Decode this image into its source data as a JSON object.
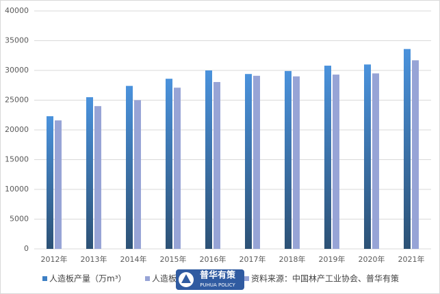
{
  "chart_data": {
    "type": "bar",
    "categories": [
      "2012年",
      "2013年",
      "2014年",
      "2015年",
      "2016年",
      "2017年",
      "2018年",
      "2019年",
      "2020年",
      "2021年"
    ],
    "series": [
      {
        "name": "人造板产量（万m³）",
        "color": "#3d7fc4",
        "values": [
          22300,
          25500,
          27400,
          28600,
          30000,
          29400,
          29900,
          30800,
          31000,
          33600
        ]
      },
      {
        "name": "人造板",
        "color": "#97a4d6",
        "values": [
          21600,
          24000,
          25000,
          27100,
          28050,
          29100,
          29000,
          29300,
          29500,
          31700
        ]
      }
    ],
    "ylim": [
      0,
      40000
    ],
    "yticks": [
      0,
      5000,
      10000,
      15000,
      20000,
      25000,
      30000,
      35000,
      40000
    ],
    "grid": true,
    "source": "资料来源：中国林产工业协会、普华有策",
    "watermark": {
      "title": "普华有策",
      "subtitle": "PUHUA POLICY"
    }
  }
}
